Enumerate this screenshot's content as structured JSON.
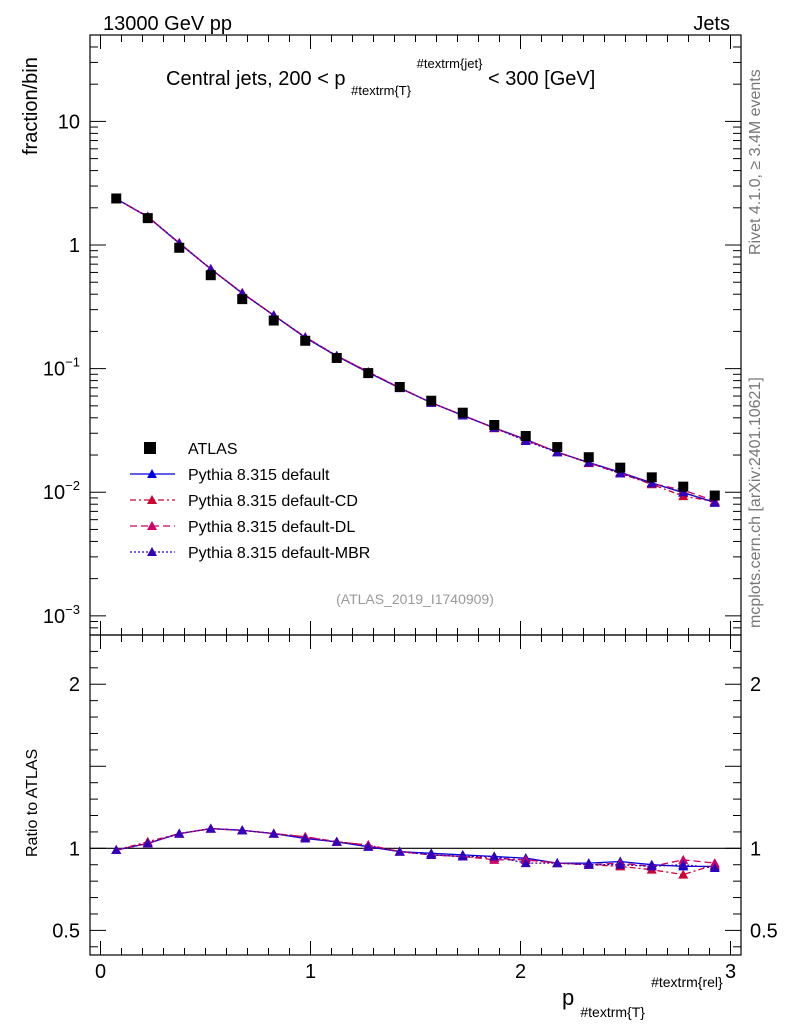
{
  "header": {
    "left": "13000 GeV pp",
    "right": "Jets"
  },
  "side_labels": {
    "version": "Rivet 4.1.0, ≥ 3.4M events",
    "source": "mcplots.cern.ch [arXiv:2401.10621]"
  },
  "chart_data": {
    "type": "line",
    "title_parts": [
      "Central jets, 200 < p",
      "#textrm{T}",
      "#textrm{jet}",
      " < 300 [GeV]"
    ],
    "watermark": "(ATLAS_2019_I1740909)",
    "ylabel": "fraction/bin",
    "ratio_ylabel": "Ratio to ATLAS",
    "xlabel_parts": [
      "p",
      "#textrm{T}",
      "#textrm{rel}"
    ],
    "xlim": [
      -0.05,
      3.05
    ],
    "ylim": [
      0.0007,
      50
    ],
    "ratio_ylim": [
      0.35,
      2.3
    ],
    "x_ticks": [
      0,
      1,
      2,
      3
    ],
    "x_tick_labels": [
      "0",
      "1",
      "2",
      "3"
    ],
    "y_ticks": [
      0.001,
      0.01,
      0.1,
      1,
      10
    ],
    "y_tick_labels": [
      [
        "10",
        "−3"
      ],
      [
        "10",
        "−2"
      ],
      [
        "10",
        "−1"
      ],
      [
        "1",
        ""
      ],
      [
        "10",
        ""
      ]
    ],
    "ratio_ticks": [
      0.5,
      1,
      2
    ],
    "ratio_tick_labels": [
      "0.5",
      "1",
      "2"
    ],
    "x": [
      0.075,
      0.225,
      0.375,
      0.525,
      0.675,
      0.825,
      0.975,
      1.125,
      1.275,
      1.425,
      1.575,
      1.725,
      1.875,
      2.025,
      2.175,
      2.325,
      2.475,
      2.625,
      2.775,
      2.925
    ],
    "data": {
      "name": "ATLAS",
      "values": [
        2.38,
        1.65,
        0.95,
        0.57,
        0.365,
        0.245,
        0.168,
        0.122,
        0.092,
        0.071,
        0.055,
        0.044,
        0.035,
        0.0285,
        0.0232,
        0.0192,
        0.0158,
        0.0132,
        0.0111,
        0.0094
      ]
    },
    "series": [
      {
        "name": "Pythia 8.315 default",
        "color": "#0000dd",
        "dash": "",
        "values": [
          2.36,
          1.69,
          1.03,
          0.64,
          0.407,
          0.27,
          0.178,
          0.126,
          0.093,
          0.0695,
          0.053,
          0.0418,
          0.0332,
          0.0268,
          0.0211,
          0.0174,
          0.0145,
          0.0119,
          0.0099,
          0.0083
        ],
        "ratio": [
          0.99,
          1.03,
          1.09,
          1.12,
          1.11,
          1.09,
          1.06,
          1.04,
          1.01,
          0.98,
          0.97,
          0.96,
          0.95,
          0.94,
          0.91,
          0.91,
          0.92,
          0.9,
          0.89,
          0.89
        ]
      },
      {
        "name": "Pythia 8.315 default-CD",
        "color": "#cc0033",
        "dash": "6 3 2 3",
        "values": [
          2.37,
          1.7,
          1.04,
          0.64,
          0.41,
          0.27,
          0.18,
          0.127,
          0.094,
          0.07,
          0.053,
          0.042,
          0.033,
          0.0266,
          0.0212,
          0.0172,
          0.0142,
          0.0116,
          0.0093,
          0.0084
        ],
        "ratio": [
          0.99,
          1.04,
          1.09,
          1.12,
          1.11,
          1.09,
          1.07,
          1.04,
          1.02,
          0.98,
          0.96,
          0.95,
          0.94,
          0.93,
          0.91,
          0.9,
          0.89,
          0.87,
          0.84,
          0.9
        ]
      },
      {
        "name": "Pythia 8.315 default-DL",
        "color": "#cc0066",
        "dash": "7 4",
        "values": [
          2.37,
          1.69,
          1.04,
          0.64,
          0.41,
          0.269,
          0.18,
          0.127,
          0.094,
          0.07,
          0.053,
          0.042,
          0.033,
          0.0265,
          0.0211,
          0.0173,
          0.0144,
          0.0118,
          0.0104,
          0.0085
        ],
        "ratio": [
          0.99,
          1.03,
          1.09,
          1.12,
          1.11,
          1.09,
          1.07,
          1.04,
          1.02,
          0.98,
          0.96,
          0.95,
          0.93,
          0.93,
          0.91,
          0.9,
          0.91,
          0.89,
          0.93,
          0.91
        ]
      },
      {
        "name": "Pythia 8.315 default-MBR",
        "color": "#3300bb",
        "dash": "2 2",
        "values": [
          2.36,
          1.69,
          1.03,
          0.64,
          0.407,
          0.27,
          0.179,
          0.127,
          0.093,
          0.0698,
          0.053,
          0.0418,
          0.0332,
          0.026,
          0.021,
          0.0174,
          0.0142,
          0.0118,
          0.01,
          0.0082
        ],
        "ratio": [
          0.99,
          1.03,
          1.09,
          1.12,
          1.11,
          1.09,
          1.06,
          1.04,
          1.01,
          0.98,
          0.96,
          0.95,
          0.95,
          0.91,
          0.91,
          0.9,
          0.9,
          0.89,
          0.9,
          0.88
        ]
      }
    ]
  }
}
